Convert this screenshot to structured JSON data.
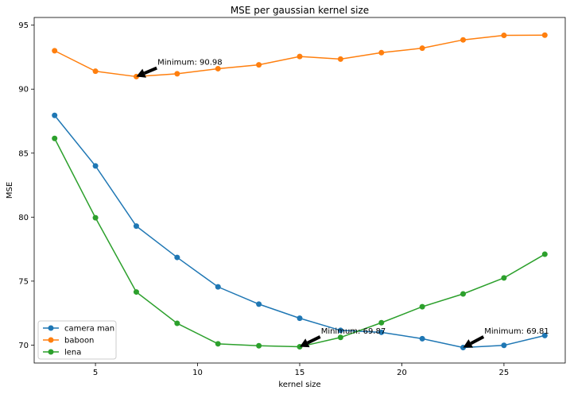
{
  "chart_data": {
    "type": "line",
    "title": "MSE per gaussian kernel size",
    "xlabel": "kernel size",
    "ylabel": "MSE",
    "xlim": [
      2,
      28
    ],
    "ylim": [
      68.6,
      95.6
    ],
    "xticks": [
      5,
      10,
      15,
      20,
      25
    ],
    "yticks": [
      70,
      75,
      80,
      85,
      90,
      95
    ],
    "x": [
      3,
      5,
      7,
      9,
      11,
      13,
      15,
      17,
      19,
      21,
      23,
      25,
      27
    ],
    "series": [
      {
        "name": "camera man",
        "color": "#1f77b4",
        "values": [
          87.95,
          84.0,
          79.3,
          76.85,
          74.55,
          73.2,
          72.1,
          71.15,
          71.0,
          70.5,
          69.81,
          69.98,
          70.75
        ]
      },
      {
        "name": "baboon",
        "color": "#ff7f0e",
        "values": [
          93.0,
          91.4,
          90.98,
          91.2,
          91.6,
          91.9,
          92.55,
          92.35,
          92.85,
          93.2,
          93.85,
          94.2,
          94.22
        ]
      },
      {
        "name": "lena",
        "color": "#2ca02c",
        "values": [
          86.15,
          79.95,
          74.15,
          71.7,
          70.1,
          69.95,
          69.87,
          70.6,
          71.75,
          73.0,
          74.0,
          75.25,
          77.1
        ]
      }
    ],
    "annotations": [
      {
        "text": "Minimum: 90.98",
        "x": 7,
        "y": 90.98,
        "text_x": 8,
        "text_y": 91.9
      },
      {
        "text": "Minimum: 69.87",
        "x": 15,
        "y": 69.87,
        "text_x": 16,
        "text_y": 70.9
      },
      {
        "text": "Minimum: 69.81",
        "x": 23,
        "y": 69.81,
        "text_x": 24,
        "text_y": 70.9
      }
    ],
    "legend_position": "lower-left",
    "grid": false
  }
}
